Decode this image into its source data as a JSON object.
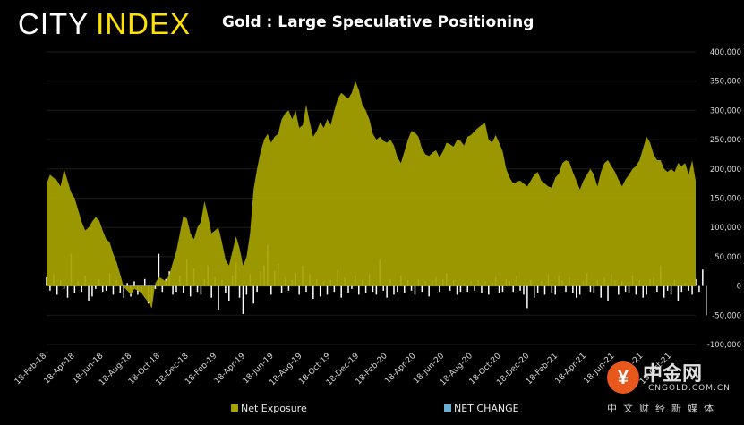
{
  "logo": {
    "word1": "CITY",
    "word2": "INDEX"
  },
  "chart_data": {
    "type": "area",
    "title": "Gold : Large Speculative Positioning",
    "ylim": [
      -100000,
      400000
    ],
    "yticks": [
      "400,000",
      "350,000",
      "300,000",
      "250,000",
      "200,000",
      "150,000",
      "100,000",
      "50,000",
      "0",
      "-50,000",
      "-100,000"
    ],
    "ytick_values": [
      400000,
      350000,
      300000,
      250000,
      200000,
      150000,
      100000,
      50000,
      0,
      -50000,
      -100000
    ],
    "x_labels": [
      "18-Feb-18",
      "18-Apr-18",
      "18-Jun-18",
      "18-Aug-18",
      "18-Oct-18",
      "18-Dec-18",
      "18-Feb-19",
      "18-Apr-19",
      "18-Jun-19",
      "18-Aug-19",
      "18-Oct-19",
      "18-Dec-19",
      "18-Feb-20",
      "18-Apr-20",
      "18-Jun-20",
      "18-Aug-20",
      "18-Oct-20",
      "18-Dec-20",
      "18-Feb-21",
      "18-Apr-21",
      "18-Jun-21",
      "18-Aug-21",
      "18-Oct-21"
    ],
    "colors": {
      "net_exposure": "#a6a300",
      "net_change": "#ffffff"
    },
    "series": [
      {
        "name": "Net Exposure",
        "key": "net_exposure",
        "values": [
          175000,
          190000,
          185000,
          180000,
          170000,
          200000,
          180000,
          160000,
          150000,
          130000,
          110000,
          95000,
          100000,
          110000,
          118000,
          112000,
          95000,
          80000,
          75000,
          55000,
          40000,
          20000,
          -2000,
          -8000,
          -15000,
          -5000,
          -8000,
          -12000,
          -20000,
          -28000,
          -38000,
          5000,
          15000,
          12000,
          8000,
          20000,
          40000,
          60000,
          90000,
          120000,
          115000,
          90000,
          80000,
          100000,
          110000,
          145000,
          120000,
          90000,
          95000,
          100000,
          75000,
          45000,
          35000,
          60000,
          85000,
          65000,
          35000,
          50000,
          90000,
          165000,
          200000,
          230000,
          250000,
          260000,
          245000,
          255000,
          260000,
          285000,
          295000,
          300000,
          285000,
          300000,
          270000,
          275000,
          310000,
          280000,
          255000,
          265000,
          280000,
          270000,
          285000,
          275000,
          300000,
          320000,
          330000,
          325000,
          320000,
          330000,
          350000,
          335000,
          310000,
          300000,
          285000,
          260000,
          250000,
          255000,
          248000,
          245000,
          250000,
          240000,
          220000,
          210000,
          230000,
          250000,
          265000,
          262000,
          255000,
          235000,
          225000,
          222000,
          228000,
          232000,
          220000,
          230000,
          245000,
          242000,
          238000,
          250000,
          248000,
          240000,
          255000,
          258000,
          265000,
          270000,
          275000,
          278000,
          250000,
          245000,
          258000,
          245000,
          230000,
          200000,
          185000,
          175000,
          178000,
          180000,
          175000,
          170000,
          180000,
          190000,
          195000,
          180000,
          175000,
          170000,
          168000,
          185000,
          192000,
          210000,
          215000,
          212000,
          195000,
          180000,
          165000,
          180000,
          190000,
          200000,
          190000,
          170000,
          195000,
          210000,
          215000,
          205000,
          195000,
          182000,
          170000,
          182000,
          190000,
          200000,
          205000,
          215000,
          235000,
          255000,
          245000,
          225000,
          215000,
          215000,
          200000,
          195000,
          200000,
          195000,
          210000,
          205000,
          210000,
          190000,
          215000,
          180000
        ]
      },
      {
        "name": "NET CHANGE",
        "key": "net_change",
        "values": [
          15000,
          -8000,
          20000,
          -15000,
          10000,
          -5000,
          -20000,
          55000,
          -12000,
          8000,
          -10000,
          18000,
          -25000,
          -18000,
          -5000,
          12000,
          -10000,
          -8000,
          22000,
          -15000,
          10000,
          -12000,
          -20000,
          5000,
          -18000,
          8000,
          -15000,
          -10000,
          12000,
          -30000,
          -25000,
          -5000,
          55000,
          -10000,
          12000,
          25000,
          -15000,
          -10000,
          18000,
          -12000,
          45000,
          -18000,
          30000,
          -10000,
          -15000,
          12000,
          35000,
          -20000,
          15000,
          -42000,
          10000,
          -12000,
          -25000,
          18000,
          40000,
          -20000,
          -48000,
          -15000,
          20000,
          -30000,
          -10000,
          25000,
          35000,
          70000,
          -15000,
          25000,
          38000,
          -12000,
          15000,
          -8000,
          10000,
          22000,
          -15000,
          35000,
          -10000,
          20000,
          -22000,
          12000,
          -18000,
          8000,
          -15000,
          10000,
          -10000,
          28000,
          -20000,
          15000,
          -12000,
          -5000,
          18000,
          -15000,
          10000,
          -12000,
          20000,
          -10000,
          -15000,
          45000,
          -8000,
          -20000,
          12000,
          -15000,
          -10000,
          18000,
          -12000,
          10000,
          -8000,
          -15000,
          12000,
          -10000,
          8000,
          -18000,
          10000,
          15000,
          -10000,
          12000,
          22000,
          -8000,
          10000,
          -15000,
          -10000,
          5000,
          -10000,
          8000,
          -8000,
          10000,
          -12000,
          8000,
          -15000,
          6000,
          15000,
          -12000,
          -10000,
          12000,
          8000,
          -10000,
          18000,
          -8000,
          -15000,
          -38000,
          10000,
          -20000,
          -12000,
          8000,
          -15000,
          20000,
          -12000,
          -15000,
          18000,
          10000,
          -10000,
          15000,
          -12000,
          -20000,
          -15000,
          8000,
          22000,
          -10000,
          -12000,
          10000,
          -20000,
          15000,
          -25000,
          20000,
          10000,
          -15000,
          8000,
          -10000,
          -12000,
          18000,
          -15000,
          10000,
          -20000,
          -15000,
          12000,
          15000,
          -10000,
          35000,
          -20000,
          -8000,
          -15000,
          10000,
          -25000,
          -10000,
          5000,
          -8000,
          -15000,
          12000,
          -10000,
          28000,
          -50000
        ]
      }
    ],
    "legend": {
      "placement": "bottom",
      "items": [
        "Net Exposure",
        "NET CHANGE"
      ]
    }
  },
  "watermark": {
    "badge": "¥",
    "name": "中金网",
    "domain": "CNGOLD.COM.CN",
    "tagline": "中文财经新媒体"
  }
}
